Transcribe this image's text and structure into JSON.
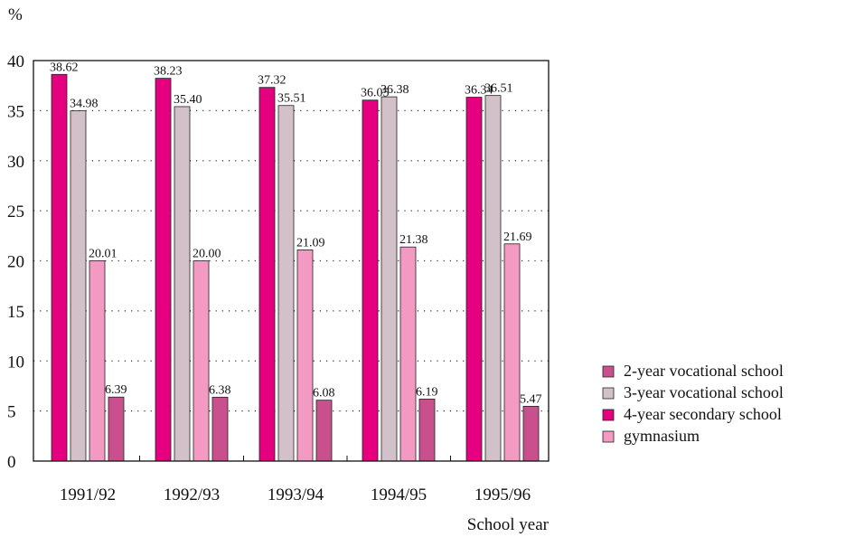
{
  "chart_data": {
    "type": "bar",
    "ylabel": "%",
    "xlabel": "School year",
    "ylim": [
      0,
      40
    ],
    "yticks": [
      0,
      5,
      10,
      15,
      20,
      25,
      30,
      35,
      40
    ],
    "categories": [
      "1991/92",
      "1992/93",
      "1993/94",
      "1994/95",
      "1995/96"
    ],
    "grid": "dotted horizontal",
    "legend_position": "right",
    "series": [
      {
        "name": "4-year secondary school",
        "color": "#e4007f",
        "values": [
          38.62,
          38.23,
          37.32,
          36.05,
          36.34
        ]
      },
      {
        "name": "3-year vocational school",
        "color": "#d2c1c8",
        "values": [
          34.98,
          35.4,
          35.51,
          36.38,
          36.51
        ]
      },
      {
        "name": "gymnasium",
        "color": "#f29ac2",
        "values": [
          20.01,
          20.0,
          21.09,
          21.38,
          21.69
        ]
      },
      {
        "name": "2-year vocational school",
        "color": "#c8508c",
        "values": [
          6.39,
          6.38,
          6.08,
          6.19,
          5.47
        ]
      }
    ],
    "value_labels": [
      [
        "38.62",
        "38.23",
        "37.32",
        "36.05",
        "36.34"
      ],
      [
        "34.98",
        "35.40",
        "35.51",
        "36.38",
        "36.51"
      ],
      [
        "20.01",
        "20.00",
        "21.09",
        "21.38",
        "21.69"
      ],
      [
        "6.39",
        "6.38",
        "6.08",
        "6.19",
        "5.47"
      ]
    ],
    "legend_order": [
      3,
      1,
      0,
      2
    ]
  }
}
